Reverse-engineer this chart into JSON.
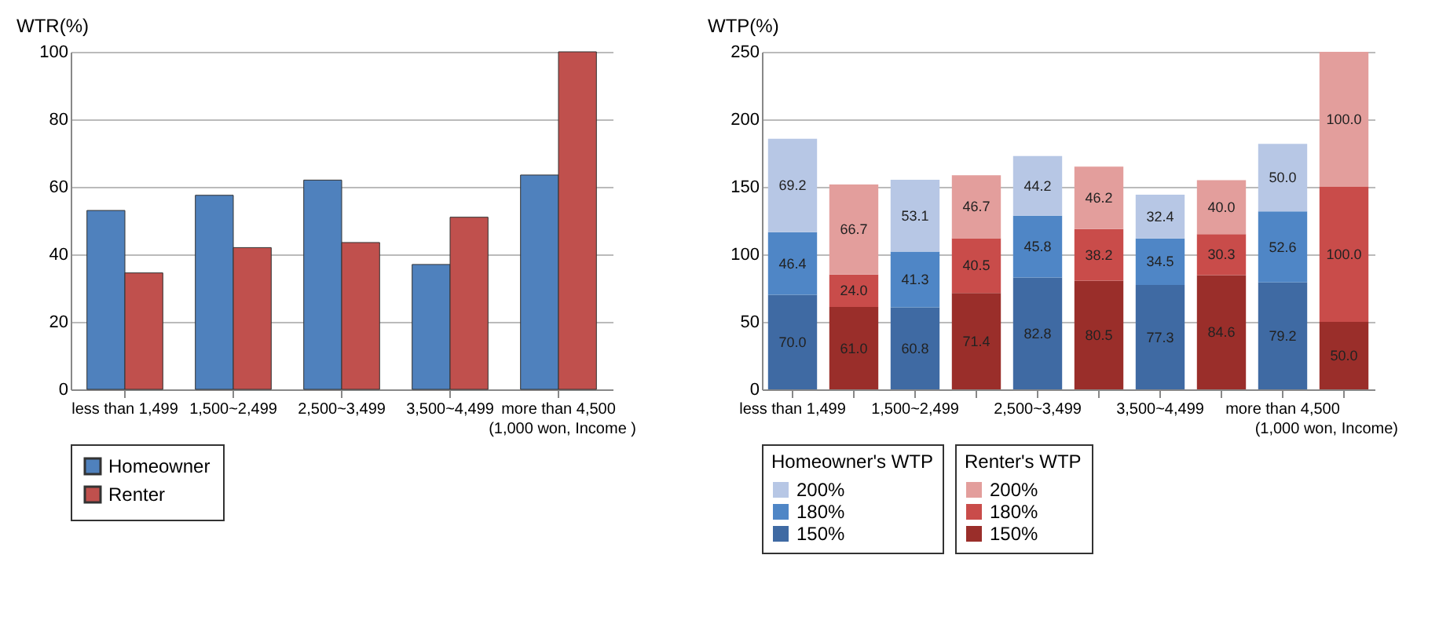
{
  "chart_data": [
    {
      "type": "bar",
      "ylabel": "WTR(%)",
      "categories": [
        "less than 1,499",
        "1,500~2,499",
        "2,500~3,499",
        "3,500~4,499",
        "more than 4,500"
      ],
      "series": [
        {
          "name": "Homeowner",
          "color": "#4f81bd",
          "values": [
            53,
            57.5,
            62,
            37,
            63.5
          ]
        },
        {
          "name": "Renter",
          "color": "#c0504d",
          "values": [
            34.5,
            42,
            43.5,
            51,
            100
          ]
        }
      ],
      "ylim": [
        0,
        100
      ],
      "yticks": [
        0,
        20,
        40,
        60,
        80,
        100
      ],
      "grid": "y",
      "legend": "bottom",
      "annotations": [
        "(1,000 won, Income )"
      ]
    },
    {
      "type": "bar",
      "stacked": true,
      "ylabel": "WTP(%)",
      "legend_title": [
        "Homeowner's WTP",
        "Renter's WTP"
      ],
      "categories": [
        "less than 1,499",
        null,
        "1,500~2,499",
        null,
        "2,500~3,499",
        null,
        "3,500~4,499",
        null,
        "more than 4,500",
        null
      ],
      "series": [
        {
          "name": "150%",
          "color": "#3f6aa3",
          "values": [
            70.0,
            null,
            60.8,
            null,
            82.8,
            null,
            77.3,
            null,
            79.2,
            null
          ],
          "value_labels": [
            "70.0",
            null,
            "60.8",
            null,
            "82.8",
            null,
            "77.3",
            null,
            "79.2",
            null
          ]
        },
        {
          "name": "180%",
          "color": "#4f86c6",
          "values": [
            46.4,
            null,
            41.3,
            null,
            45.8,
            null,
            34.5,
            null,
            52.6,
            null
          ],
          "value_labels": [
            "46.4",
            null,
            "41.3",
            null,
            "45.8",
            null,
            "34.5",
            null,
            "52.6",
            null
          ]
        },
        {
          "name": "200%",
          "color": "#b7c7e5",
          "values": [
            69.2,
            null,
            53.1,
            null,
            44.2,
            null,
            32.4,
            null,
            50.0,
            null
          ],
          "value_labels": [
            "69.2",
            null,
            "53.1",
            null,
            "44.2",
            null,
            "32.4",
            null,
            "50.0",
            null
          ]
        },
        {
          "name": "150%",
          "color": "#9a2e2a",
          "values": [
            null,
            61.0,
            null,
            71.4,
            null,
            80.5,
            null,
            84.6,
            null,
            50.0
          ],
          "value_labels": [
            null,
            "61.0",
            null,
            "71.4",
            null,
            "80.5",
            null,
            "84.6",
            null,
            "50.0"
          ]
        },
        {
          "name": "180%",
          "color": "#c94c4a",
          "values": [
            null,
            24.0,
            null,
            40.5,
            null,
            38.2,
            null,
            30.3,
            null,
            100.0
          ],
          "value_labels": [
            null,
            "24.0",
            null,
            "40.5",
            null,
            "38.2",
            null,
            "30.3",
            null,
            "100.0"
          ]
        },
        {
          "name": "200%",
          "color": "#e39e9c",
          "values": [
            null,
            66.7,
            null,
            46.7,
            null,
            46.2,
            null,
            40.0,
            null,
            100.0
          ],
          "value_labels": [
            null,
            "66.7",
            null,
            "46.7",
            null,
            "46.2",
            null,
            "40.0",
            null,
            "100.0"
          ]
        }
      ],
      "ylim": [
        0,
        250
      ],
      "yticks": [
        0,
        50,
        100,
        150,
        200,
        250
      ],
      "grid": "y",
      "legend": "bottom",
      "annotations": [
        "(1,000 won, Income)"
      ]
    }
  ]
}
